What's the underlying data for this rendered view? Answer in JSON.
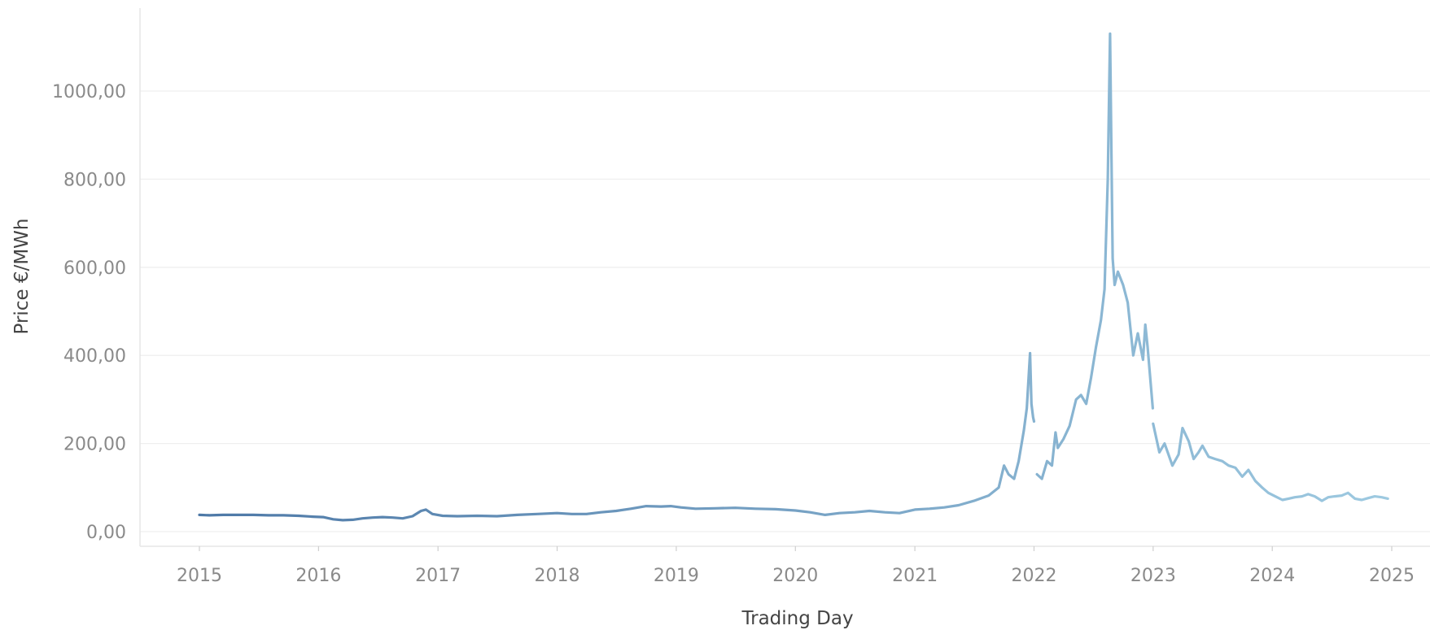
{
  "chart_data": {
    "type": "line",
    "xlabel": "Trading Day",
    "ylabel": "Price €/MWh",
    "ylim": [
      0,
      1140
    ],
    "xlim": [
      "2014-07-15",
      "2025-06-30"
    ],
    "y_ticks": [
      "0,00",
      "200,00",
      "400,00",
      "600,00",
      "800,00",
      "1000,00"
    ],
    "y_tick_values": [
      0,
      200,
      400,
      600,
      800,
      1000
    ],
    "x_ticks": [
      "2015",
      "2016",
      "2017",
      "2018",
      "2019",
      "2020",
      "2021",
      "2022",
      "2023",
      "2024",
      "2025"
    ],
    "x_tick_values": [
      "2015-01-01",
      "2016-01-01",
      "2017-01-01",
      "2018-01-01",
      "2019-01-01",
      "2020-01-01",
      "2021-01-01",
      "2022-01-01",
      "2023-01-01",
      "2024-01-01",
      "2025-01-01"
    ],
    "grid": true,
    "legend": false,
    "colors": {
      "line_start": "#4e79a7",
      "line_end": "#9ecae1"
    },
    "series": [
      {
        "x": [
          "2015-01-01",
          "2015-02-01",
          "2015-03-15",
          "2015-05-01",
          "2015-06-15",
          "2015-08-01",
          "2015-09-15",
          "2015-11-01",
          "2015-12-15",
          "2016-01-15",
          "2016-02-15",
          "2016-03-15",
          "2016-04-15",
          "2016-05-15",
          "2016-06-15",
          "2016-07-15",
          "2016-08-15",
          "2016-09-15",
          "2016-10-15",
          "2016-11-10",
          "2016-11-25",
          "2016-12-15",
          "2017-01-15",
          "2017-03-01",
          "2017-05-01",
          "2017-07-01",
          "2017-09-01",
          "2017-11-01",
          "2018-01-01",
          "2018-02-15",
          "2018-04-01",
          "2018-05-15",
          "2018-07-01",
          "2018-08-15",
          "2018-10-01",
          "2018-11-15",
          "2018-12-15",
          "2019-01-15",
          "2019-03-01",
          "2019-05-01",
          "2019-07-01",
          "2019-09-01",
          "2019-11-01",
          "2020-01-01",
          "2020-02-15",
          "2020-04-01",
          "2020-05-15",
          "2020-07-01",
          "2020-08-15",
          "2020-10-01",
          "2020-11-15",
          "2021-01-01",
          "2021-02-15",
          "2021-04-01",
          "2021-05-15",
          "2021-07-01",
          "2021-08-15",
          "2021-09-15",
          "2021-10-01",
          "2021-10-15",
          "2021-11-01",
          "2021-11-15",
          "2021-12-01",
          "2021-12-10",
          "2021-12-20",
          "2021-12-24",
          "2021-12-29",
          "2022-01-01"
        ],
        "values": [
          38,
          37,
          38,
          38,
          38,
          37,
          37,
          36,
          34,
          33,
          28,
          26,
          27,
          30,
          32,
          33,
          32,
          30,
          35,
          47,
          50,
          40,
          36,
          35,
          36,
          35,
          38,
          40,
          42,
          40,
          40,
          44,
          47,
          52,
          58,
          57,
          58,
          55,
          52,
          53,
          54,
          52,
          51,
          48,
          44,
          38,
          42,
          44,
          47,
          44,
          42,
          50,
          52,
          55,
          60,
          70,
          82,
          100,
          150,
          130,
          120,
          160,
          230,
          280,
          405,
          290,
          260,
          250
        ]
      },
      {
        "x": [
          "2022-01-10",
          "2022-01-25",
          "2022-02-10",
          "2022-02-25",
          "2022-03-08",
          "2022-03-15",
          "2022-04-01",
          "2022-04-20",
          "2022-05-10",
          "2022-05-25",
          "2022-06-10",
          "2022-06-25",
          "2022-07-10",
          "2022-07-25",
          "2022-08-05",
          "2022-08-15",
          "2022-08-22",
          "2022-08-26",
          "2022-08-30",
          "2022-09-05",
          "2022-09-15",
          "2022-10-01",
          "2022-10-15",
          "2022-11-01",
          "2022-11-15",
          "2022-12-01",
          "2022-12-08",
          "2022-12-15",
          "2022-12-31"
        ],
        "values": [
          130,
          120,
          160,
          150,
          225,
          190,
          210,
          240,
          300,
          310,
          290,
          350,
          420,
          480,
          550,
          800,
          1130,
          870,
          620,
          560,
          590,
          560,
          520,
          400,
          450,
          390,
          470,
          420,
          280
        ]
      },
      {
        "x": [
          "2023-01-01",
          "2023-01-20",
          "2023-02-05",
          "2023-03-01",
          "2023-03-20",
          "2023-04-01",
          "2023-04-20",
          "2023-05-05",
          "2023-05-20",
          "2023-06-01",
          "2023-06-20",
          "2023-07-10",
          "2023-08-01",
          "2023-08-20",
          "2023-09-10",
          "2023-10-01",
          "2023-10-20",
          "2023-11-10",
          "2023-12-01",
          "2023-12-20",
          "2024-01-10",
          "2024-02-01",
          "2024-02-20",
          "2024-03-10",
          "2024-04-01",
          "2024-04-20",
          "2024-05-10",
          "2024-06-01",
          "2024-06-20",
          "2024-07-10",
          "2024-08-01",
          "2024-08-20",
          "2024-09-10",
          "2024-10-01",
          "2024-10-20",
          "2024-11-10",
          "2024-12-01",
          "2024-12-20"
        ],
        "values": [
          245,
          180,
          200,
          150,
          175,
          235,
          205,
          165,
          180,
          195,
          170,
          165,
          160,
          150,
          145,
          125,
          140,
          115,
          100,
          88,
          80,
          72,
          75,
          78,
          80,
          85,
          80,
          70,
          78,
          80,
          82,
          88,
          75,
          72,
          76,
          80,
          78,
          75
        ]
      }
    ]
  }
}
